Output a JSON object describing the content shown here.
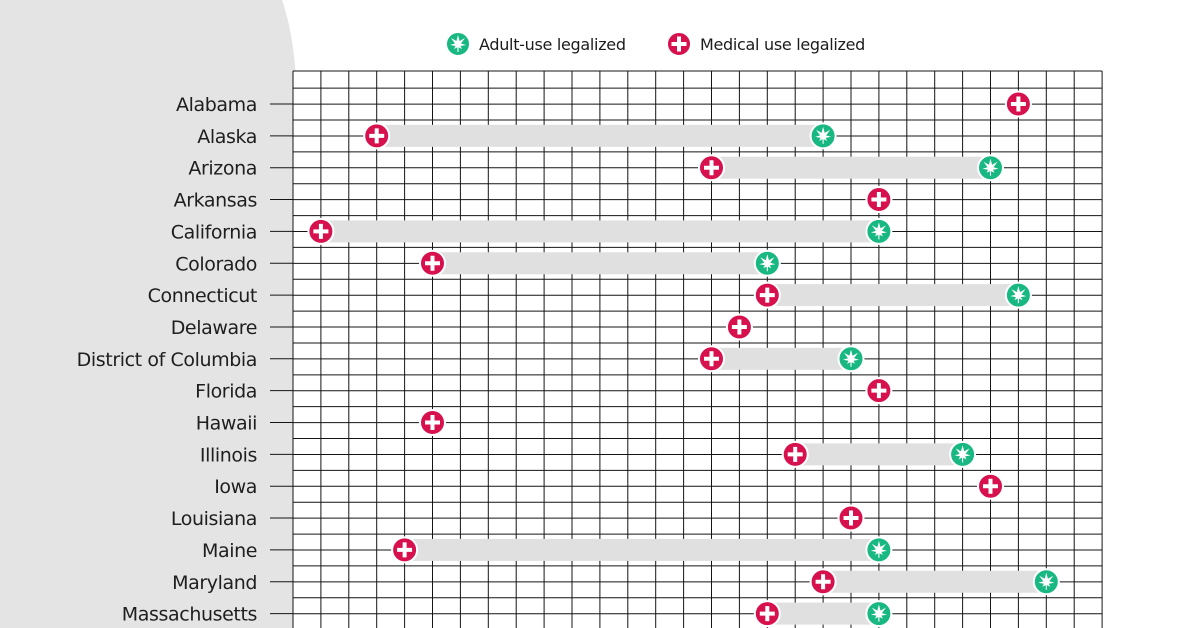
{
  "chart_data": {
    "type": "range-dot",
    "legend": [
      {
        "label": "Adult-use legalized",
        "color": "#19b883",
        "icon": "cannabis-leaf-icon"
      },
      {
        "label": "Medical use legalized",
        "color": "#d6114e",
        "icon": "plus-cross-icon"
      }
    ],
    "x_range": [
      1994,
      2023
    ],
    "x_tick_step": 1,
    "grid": true,
    "connector_color": "#e0e0e0",
    "states": [
      {
        "name": "Alabama",
        "medical": 2021,
        "adult": null
      },
      {
        "name": "Alaska",
        "medical": 1998,
        "adult": 2014
      },
      {
        "name": "Arizona",
        "medical": 2010,
        "adult": 2020
      },
      {
        "name": "Arkansas",
        "medical": 2016,
        "adult": null
      },
      {
        "name": "California",
        "medical": 1996,
        "adult": 2016
      },
      {
        "name": "Colorado",
        "medical": 2000,
        "adult": 2012
      },
      {
        "name": "Connecticut",
        "medical": 2012,
        "adult": 2021
      },
      {
        "name": "Delaware",
        "medical": 2011,
        "adult": null
      },
      {
        "name": "District of Columbia",
        "medical": 2010,
        "adult": 2015
      },
      {
        "name": "Florida",
        "medical": 2016,
        "adult": null
      },
      {
        "name": "Hawaii",
        "medical": 2000,
        "adult": null
      },
      {
        "name": "Illinois",
        "medical": 2013,
        "adult": 2019
      },
      {
        "name": "Iowa",
        "medical": 2020,
        "adult": null
      },
      {
        "name": "Louisiana",
        "medical": 2015,
        "adult": null
      },
      {
        "name": "Maine",
        "medical": 1999,
        "adult": 2016
      },
      {
        "name": "Maryland",
        "medical": 2014,
        "adult": 2022
      },
      {
        "name": "Massachusetts",
        "medical": 2012,
        "adult": 2016
      }
    ]
  }
}
